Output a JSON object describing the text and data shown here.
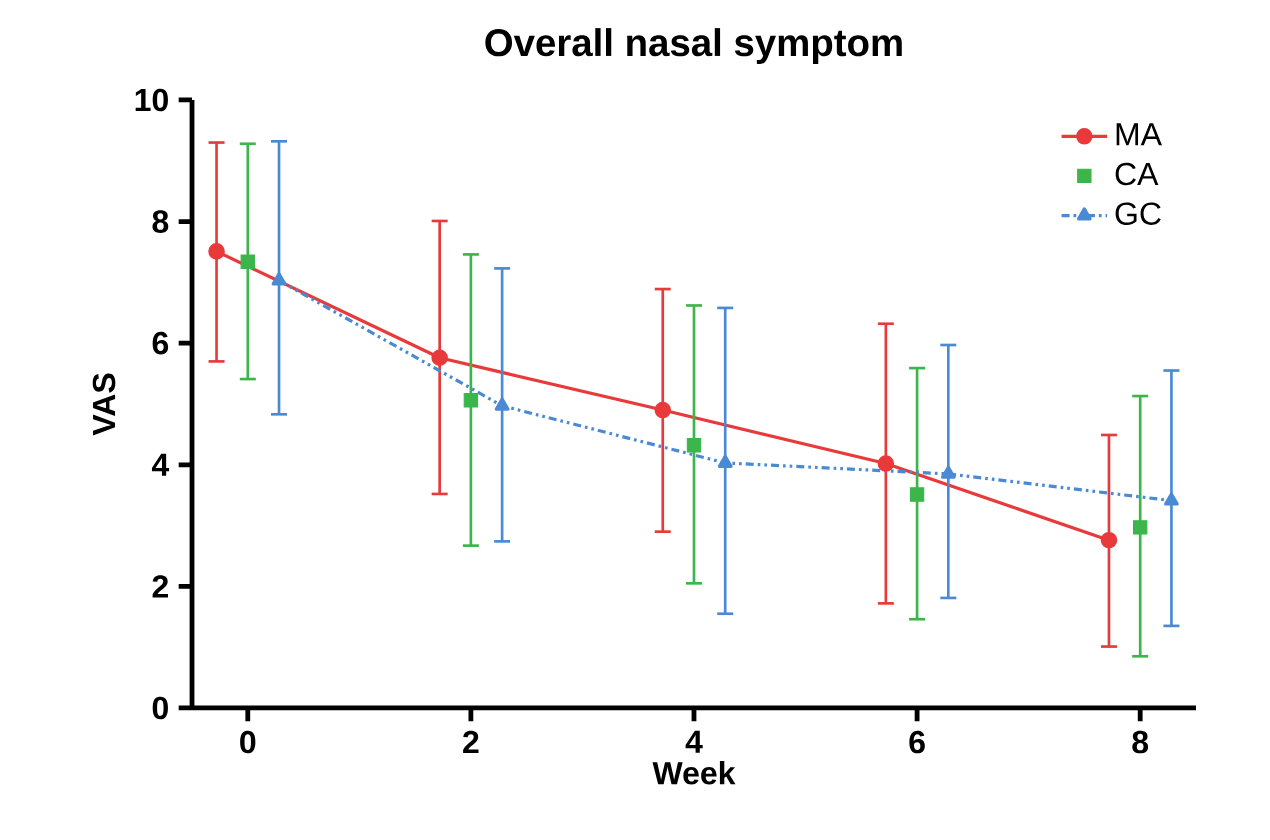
{
  "chart_data": {
    "type": "line",
    "title": "Overall nasal symptom",
    "xlabel": "Week",
    "ylabel": "VAS",
    "xlim": [
      -0.5,
      8.5
    ],
    "ylim": [
      0,
      10
    ],
    "xticks": [
      0,
      2,
      4,
      6,
      8
    ],
    "yticks": [
      0,
      2,
      4,
      6,
      8,
      10
    ],
    "grid": false,
    "legend": "top right",
    "series": [
      {
        "name": "MA",
        "color": "#e8393b",
        "type": "line",
        "marker": "circle",
        "line_style": "solid",
        "x": [
          -0.28,
          1.72,
          3.72,
          5.72,
          7.72
        ],
        "values": [
          7.51,
          5.76,
          4.9,
          4.02,
          2.76
        ],
        "errors": [
          [
            5.7,
            9.3
          ],
          [
            3.52,
            8.01
          ],
          [
            2.9,
            6.89
          ],
          [
            1.72,
            6.32
          ],
          [
            1.01,
            4.49
          ]
        ]
      },
      {
        "name": "CA",
        "color": "#3cb54a",
        "type": "scatter",
        "marker": "square",
        "x": [
          0,
          2,
          4,
          6,
          8
        ],
        "values": [
          7.34,
          5.06,
          4.32,
          3.51,
          2.97
        ],
        "errors": [
          [
            5.41,
            9.28
          ],
          [
            2.67,
            7.46
          ],
          [
            2.05,
            6.62
          ],
          [
            1.46,
            5.59
          ],
          [
            0.85,
            5.13
          ]
        ]
      },
      {
        "name": "GC",
        "color": "#4a8ad4",
        "type": "line",
        "marker": "triangle",
        "line_style": "dotted",
        "x": [
          0.28,
          2.28,
          4.28,
          6.28,
          8.28
        ],
        "values": [
          7.03,
          4.97,
          4.03,
          3.85,
          3.41
        ],
        "errors": [
          [
            4.83,
            9.32
          ],
          [
            2.74,
            7.23
          ],
          [
            1.55,
            6.58
          ],
          [
            1.81,
            5.97
          ],
          [
            1.35,
            5.55
          ]
        ]
      }
    ]
  }
}
